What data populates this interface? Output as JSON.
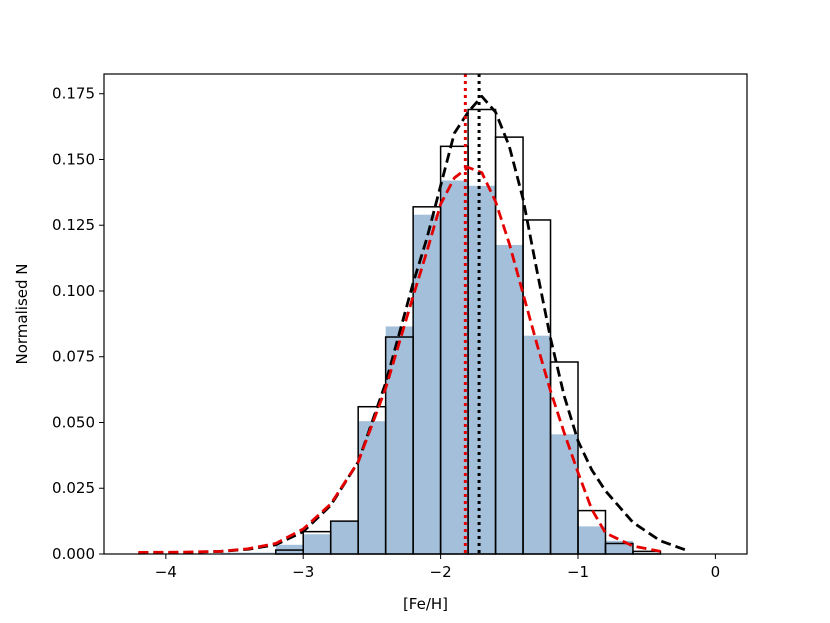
{
  "chart_data": {
    "type": "bar",
    "xlabel": "[Fe/H]",
    "ylabel": "Normalised N",
    "xlim": [
      -4.45,
      0.23
    ],
    "ylim": [
      0,
      0.1825
    ],
    "x_ticks": [
      -4,
      -3,
      -2,
      -1,
      0
    ],
    "x_tick_labels": [
      "−4",
      "−3",
      "−2",
      "−1",
      "0"
    ],
    "y_ticks": [
      0,
      0.025,
      0.05,
      0.075,
      0.1,
      0.125,
      0.15,
      0.175
    ],
    "y_tick_labels": [
      "0.000",
      "0.025",
      "0.050",
      "0.075",
      "0.100",
      "0.125",
      "0.150",
      "0.175"
    ],
    "grid": false,
    "colors": {
      "filled_bars": "#a3bfda",
      "outline_bars": "#000000",
      "black_curve": "#000000",
      "red_curve": "#e50000",
      "black_median": "#000000",
      "red_median": "#e50000"
    },
    "bin_edges": [
      -4.2,
      -4.0,
      -3.8,
      -3.6,
      -3.4,
      -3.2,
      -3.0,
      -2.8,
      -2.6,
      -2.4,
      -2.2,
      -2.0,
      -1.8,
      -1.6,
      -1.4,
      -1.2,
      -1.0,
      -0.8,
      -0.6,
      -0.4,
      -0.2,
      0.0
    ],
    "series": [
      {
        "style": "filled-histogram",
        "values": [
          0,
          0.0002,
          0,
          0.0005,
          0.0005,
          0.0035,
          0.0075,
          0.0125,
          0.0505,
          0.0865,
          0.129,
          0.142,
          0.14,
          0.1175,
          0.083,
          0.0455,
          0.0105,
          0.005,
          0.0005,
          0,
          0
        ]
      },
      {
        "style": "outline-histogram",
        "values": [
          0,
          0,
          0,
          0,
          0,
          0.0015,
          0.0085,
          0.0125,
          0.056,
          0.0825,
          0.132,
          0.155,
          0.169,
          0.1585,
          0.127,
          0.073,
          0.0165,
          0.004,
          0.001,
          0,
          0
        ]
      },
      {
        "style": "dashed-line",
        "x": [
          -4.2,
          -3.9,
          -3.6,
          -3.4,
          -3.2,
          -3.0,
          -2.8,
          -2.6,
          -2.4,
          -2.2,
          -2.1,
          -2.0,
          -1.9,
          -1.8,
          -1.7,
          -1.6,
          -1.5,
          -1.4,
          -1.3,
          -1.2,
          -1.1,
          -1.0,
          -0.9,
          -0.8,
          -0.6,
          -0.4,
          -0.2
        ],
        "y": [
          0.0003,
          0.0005,
          0.001,
          0.0018,
          0.0035,
          0.0085,
          0.0185,
          0.035,
          0.065,
          0.103,
          0.12,
          0.14,
          0.16,
          0.168,
          0.174,
          0.168,
          0.155,
          0.135,
          0.108,
          0.082,
          0.06,
          0.043,
          0.032,
          0.024,
          0.012,
          0.005,
          0.0012
        ]
      },
      {
        "style": "dashed-line",
        "x": [
          -4.2,
          -3.9,
          -3.6,
          -3.4,
          -3.2,
          -3.0,
          -2.8,
          -2.6,
          -2.4,
          -2.2,
          -2.1,
          -2.0,
          -1.9,
          -1.8,
          -1.7,
          -1.6,
          -1.5,
          -1.4,
          -1.3,
          -1.2,
          -1.1,
          -1.0,
          -0.9,
          -0.8,
          -0.6,
          -0.4
        ],
        "y": [
          0.0006,
          0.0007,
          0.001,
          0.002,
          0.004,
          0.0095,
          0.019,
          0.035,
          0.063,
          0.098,
          0.115,
          0.133,
          0.143,
          0.147,
          0.145,
          0.134,
          0.118,
          0.099,
          0.08,
          0.062,
          0.046,
          0.031,
          0.017,
          0.008,
          0.003,
          0.001
        ]
      }
    ],
    "vertical_lines": [
      {
        "x": -1.72,
        "style": "dotted",
        "color": "#000000"
      },
      {
        "x": -1.82,
        "style": "dotted",
        "color": "#e50000"
      }
    ]
  }
}
